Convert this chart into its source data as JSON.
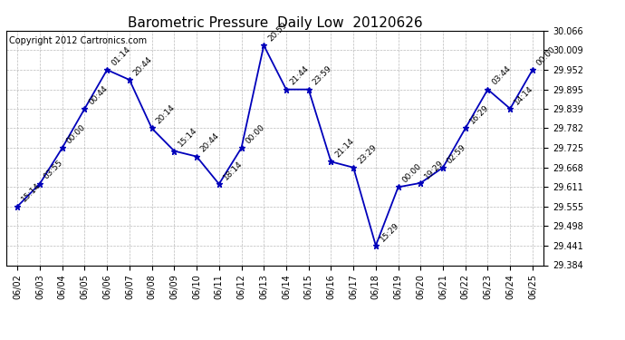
{
  "title": "Barometric Pressure  Daily Low  20120626",
  "copyright": "Copyright 2012 Cartronics.com",
  "x_labels": [
    "06/02",
    "06/03",
    "06/04",
    "06/05",
    "06/06",
    "06/07",
    "06/08",
    "06/09",
    "06/10",
    "06/11",
    "06/12",
    "06/13",
    "06/14",
    "06/15",
    "06/16",
    "06/17",
    "06/18",
    "06/19",
    "06/20",
    "06/21",
    "06/22",
    "06/23",
    "06/24",
    "06/25"
  ],
  "y_values": [
    29.555,
    29.621,
    29.725,
    29.839,
    29.952,
    29.923,
    29.782,
    29.716,
    29.7,
    29.62,
    29.725,
    30.023,
    29.895,
    29.895,
    29.685,
    29.668,
    29.441,
    29.611,
    29.623,
    29.668,
    29.782,
    29.895,
    29.839,
    29.952
  ],
  "point_labels": [
    "15:14",
    "03:55",
    "00:00",
    "00:44",
    "01:14",
    "20:44",
    "20:14",
    "15:14",
    "20:44",
    "18:14",
    "00:00",
    "20:59",
    "21:44",
    "23:59",
    "21:14",
    "23:29",
    "15:29",
    "00:00",
    "19:29",
    "02:59",
    "16:29",
    "03:44",
    "14:14",
    "00:00"
  ],
  "y_min": 29.384,
  "y_max": 30.066,
  "y_ticks": [
    29.384,
    29.441,
    29.498,
    29.555,
    29.611,
    29.668,
    29.725,
    29.782,
    29.839,
    29.895,
    29.952,
    30.009,
    30.066
  ],
  "line_color": "#0000bb",
  "marker_color": "#0000bb",
  "bg_color": "#ffffff",
  "grid_color": "#bbbbbb",
  "title_fontsize": 11,
  "copyright_fontsize": 7,
  "label_fontsize": 6.5,
  "tick_fontsize": 7
}
